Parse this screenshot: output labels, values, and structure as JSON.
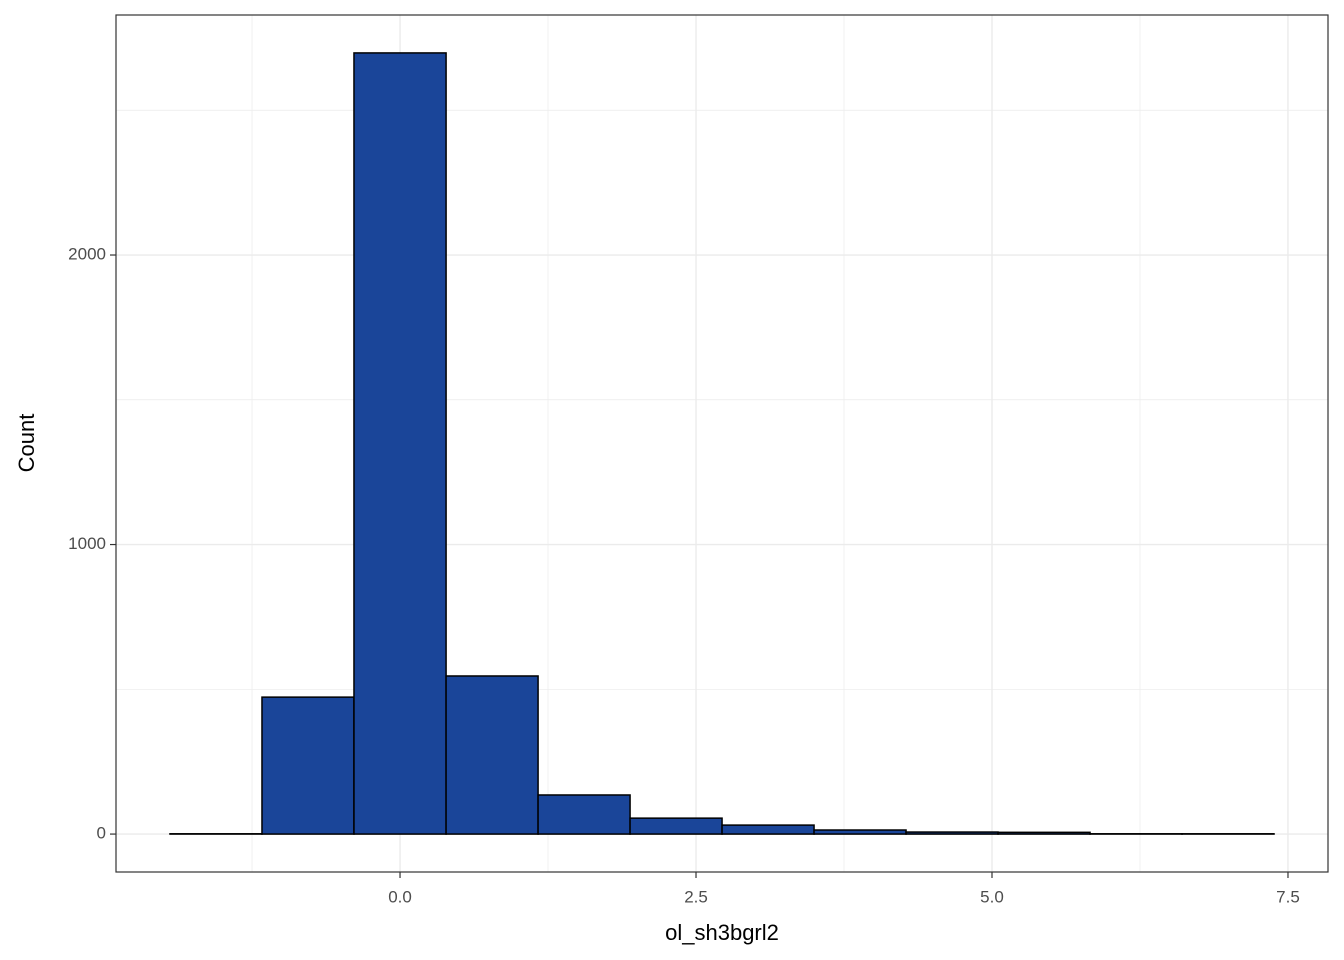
{
  "chart_data": {
    "type": "histogram",
    "x_label": "ol_sh3bgrl2",
    "y_label": "Count",
    "bins": [
      -1.943,
      -1.166,
      -0.389,
      0.389,
      1.166,
      1.943,
      2.72,
      3.497,
      4.274,
      5.051,
      5.828,
      6.605,
      7.382
    ],
    "values": [
      1,
      473,
      2698,
      546,
      135,
      55,
      31,
      14,
      7,
      6,
      1,
      1
    ],
    "color": "#1a4599",
    "edge_color": "#000000",
    "xlim": [
      -2.399,
      7.838
    ],
    "ylim": [
      -131,
      2829
    ],
    "xticks": [
      {
        "value": 0,
        "label": "0.0"
      },
      {
        "value": 2.5,
        "label": "2.5"
      },
      {
        "value": 5,
        "label": "5.0"
      },
      {
        "value": 7.5,
        "label": "7.5"
      }
    ],
    "yticks": [
      0,
      1000,
      2000
    ],
    "x_minor_grid": [
      -1.25,
      1.25,
      3.75,
      6.25
    ],
    "y_minor_grid": [
      500,
      1500,
      2500
    ],
    "grid": true
  }
}
